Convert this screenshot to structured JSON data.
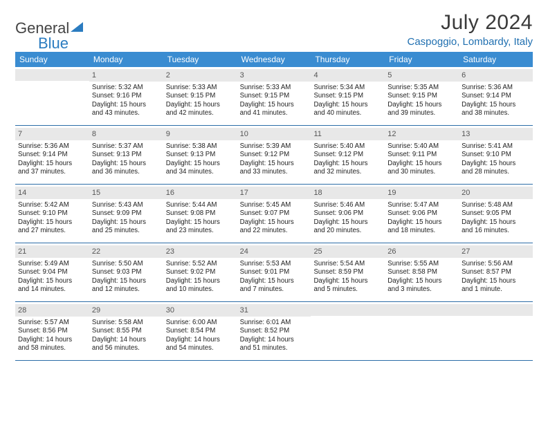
{
  "logo": {
    "part1": "General",
    "part2": "Blue"
  },
  "title": "July 2024",
  "location": "Caspoggio, Lombardy, Italy",
  "colors": {
    "header_bg": "#3a8cd1",
    "header_text": "#ffffff",
    "week_border": "#2b6ca7",
    "daynum_bg": "#e8e8e8",
    "location_color": "#1f6fb0",
    "logo_accent": "#2b7cc0"
  },
  "day_headers": [
    "Sunday",
    "Monday",
    "Tuesday",
    "Wednesday",
    "Thursday",
    "Friday",
    "Saturday"
  ],
  "weeks": [
    [
      {
        "day": "",
        "sunrise": "",
        "sunset": "",
        "daylight1": "",
        "daylight2": ""
      },
      {
        "day": "1",
        "sunrise": "Sunrise: 5:32 AM",
        "sunset": "Sunset: 9:16 PM",
        "daylight1": "Daylight: 15 hours",
        "daylight2": "and 43 minutes."
      },
      {
        "day": "2",
        "sunrise": "Sunrise: 5:33 AM",
        "sunset": "Sunset: 9:15 PM",
        "daylight1": "Daylight: 15 hours",
        "daylight2": "and 42 minutes."
      },
      {
        "day": "3",
        "sunrise": "Sunrise: 5:33 AM",
        "sunset": "Sunset: 9:15 PM",
        "daylight1": "Daylight: 15 hours",
        "daylight2": "and 41 minutes."
      },
      {
        "day": "4",
        "sunrise": "Sunrise: 5:34 AM",
        "sunset": "Sunset: 9:15 PM",
        "daylight1": "Daylight: 15 hours",
        "daylight2": "and 40 minutes."
      },
      {
        "day": "5",
        "sunrise": "Sunrise: 5:35 AM",
        "sunset": "Sunset: 9:15 PM",
        "daylight1": "Daylight: 15 hours",
        "daylight2": "and 39 minutes."
      },
      {
        "day": "6",
        "sunrise": "Sunrise: 5:36 AM",
        "sunset": "Sunset: 9:14 PM",
        "daylight1": "Daylight: 15 hours",
        "daylight2": "and 38 minutes."
      }
    ],
    [
      {
        "day": "7",
        "sunrise": "Sunrise: 5:36 AM",
        "sunset": "Sunset: 9:14 PM",
        "daylight1": "Daylight: 15 hours",
        "daylight2": "and 37 minutes."
      },
      {
        "day": "8",
        "sunrise": "Sunrise: 5:37 AM",
        "sunset": "Sunset: 9:13 PM",
        "daylight1": "Daylight: 15 hours",
        "daylight2": "and 36 minutes."
      },
      {
        "day": "9",
        "sunrise": "Sunrise: 5:38 AM",
        "sunset": "Sunset: 9:13 PM",
        "daylight1": "Daylight: 15 hours",
        "daylight2": "and 34 minutes."
      },
      {
        "day": "10",
        "sunrise": "Sunrise: 5:39 AM",
        "sunset": "Sunset: 9:12 PM",
        "daylight1": "Daylight: 15 hours",
        "daylight2": "and 33 minutes."
      },
      {
        "day": "11",
        "sunrise": "Sunrise: 5:40 AM",
        "sunset": "Sunset: 9:12 PM",
        "daylight1": "Daylight: 15 hours",
        "daylight2": "and 32 minutes."
      },
      {
        "day": "12",
        "sunrise": "Sunrise: 5:40 AM",
        "sunset": "Sunset: 9:11 PM",
        "daylight1": "Daylight: 15 hours",
        "daylight2": "and 30 minutes."
      },
      {
        "day": "13",
        "sunrise": "Sunrise: 5:41 AM",
        "sunset": "Sunset: 9:10 PM",
        "daylight1": "Daylight: 15 hours",
        "daylight2": "and 28 minutes."
      }
    ],
    [
      {
        "day": "14",
        "sunrise": "Sunrise: 5:42 AM",
        "sunset": "Sunset: 9:10 PM",
        "daylight1": "Daylight: 15 hours",
        "daylight2": "and 27 minutes."
      },
      {
        "day": "15",
        "sunrise": "Sunrise: 5:43 AM",
        "sunset": "Sunset: 9:09 PM",
        "daylight1": "Daylight: 15 hours",
        "daylight2": "and 25 minutes."
      },
      {
        "day": "16",
        "sunrise": "Sunrise: 5:44 AM",
        "sunset": "Sunset: 9:08 PM",
        "daylight1": "Daylight: 15 hours",
        "daylight2": "and 23 minutes."
      },
      {
        "day": "17",
        "sunrise": "Sunrise: 5:45 AM",
        "sunset": "Sunset: 9:07 PM",
        "daylight1": "Daylight: 15 hours",
        "daylight2": "and 22 minutes."
      },
      {
        "day": "18",
        "sunrise": "Sunrise: 5:46 AM",
        "sunset": "Sunset: 9:06 PM",
        "daylight1": "Daylight: 15 hours",
        "daylight2": "and 20 minutes."
      },
      {
        "day": "19",
        "sunrise": "Sunrise: 5:47 AM",
        "sunset": "Sunset: 9:06 PM",
        "daylight1": "Daylight: 15 hours",
        "daylight2": "and 18 minutes."
      },
      {
        "day": "20",
        "sunrise": "Sunrise: 5:48 AM",
        "sunset": "Sunset: 9:05 PM",
        "daylight1": "Daylight: 15 hours",
        "daylight2": "and 16 minutes."
      }
    ],
    [
      {
        "day": "21",
        "sunrise": "Sunrise: 5:49 AM",
        "sunset": "Sunset: 9:04 PM",
        "daylight1": "Daylight: 15 hours",
        "daylight2": "and 14 minutes."
      },
      {
        "day": "22",
        "sunrise": "Sunrise: 5:50 AM",
        "sunset": "Sunset: 9:03 PM",
        "daylight1": "Daylight: 15 hours",
        "daylight2": "and 12 minutes."
      },
      {
        "day": "23",
        "sunrise": "Sunrise: 5:52 AM",
        "sunset": "Sunset: 9:02 PM",
        "daylight1": "Daylight: 15 hours",
        "daylight2": "and 10 minutes."
      },
      {
        "day": "24",
        "sunrise": "Sunrise: 5:53 AM",
        "sunset": "Sunset: 9:01 PM",
        "daylight1": "Daylight: 15 hours",
        "daylight2": "and 7 minutes."
      },
      {
        "day": "25",
        "sunrise": "Sunrise: 5:54 AM",
        "sunset": "Sunset: 8:59 PM",
        "daylight1": "Daylight: 15 hours",
        "daylight2": "and 5 minutes."
      },
      {
        "day": "26",
        "sunrise": "Sunrise: 5:55 AM",
        "sunset": "Sunset: 8:58 PM",
        "daylight1": "Daylight: 15 hours",
        "daylight2": "and 3 minutes."
      },
      {
        "day": "27",
        "sunrise": "Sunrise: 5:56 AM",
        "sunset": "Sunset: 8:57 PM",
        "daylight1": "Daylight: 15 hours",
        "daylight2": "and 1 minute."
      }
    ],
    [
      {
        "day": "28",
        "sunrise": "Sunrise: 5:57 AM",
        "sunset": "Sunset: 8:56 PM",
        "daylight1": "Daylight: 14 hours",
        "daylight2": "and 58 minutes."
      },
      {
        "day": "29",
        "sunrise": "Sunrise: 5:58 AM",
        "sunset": "Sunset: 8:55 PM",
        "daylight1": "Daylight: 14 hours",
        "daylight2": "and 56 minutes."
      },
      {
        "day": "30",
        "sunrise": "Sunrise: 6:00 AM",
        "sunset": "Sunset: 8:54 PM",
        "daylight1": "Daylight: 14 hours",
        "daylight2": "and 54 minutes."
      },
      {
        "day": "31",
        "sunrise": "Sunrise: 6:01 AM",
        "sunset": "Sunset: 8:52 PM",
        "daylight1": "Daylight: 14 hours",
        "daylight2": "and 51 minutes."
      },
      {
        "day": "",
        "sunrise": "",
        "sunset": "",
        "daylight1": "",
        "daylight2": ""
      },
      {
        "day": "",
        "sunrise": "",
        "sunset": "",
        "daylight1": "",
        "daylight2": ""
      },
      {
        "day": "",
        "sunrise": "",
        "sunset": "",
        "daylight1": "",
        "daylight2": ""
      }
    ]
  ]
}
